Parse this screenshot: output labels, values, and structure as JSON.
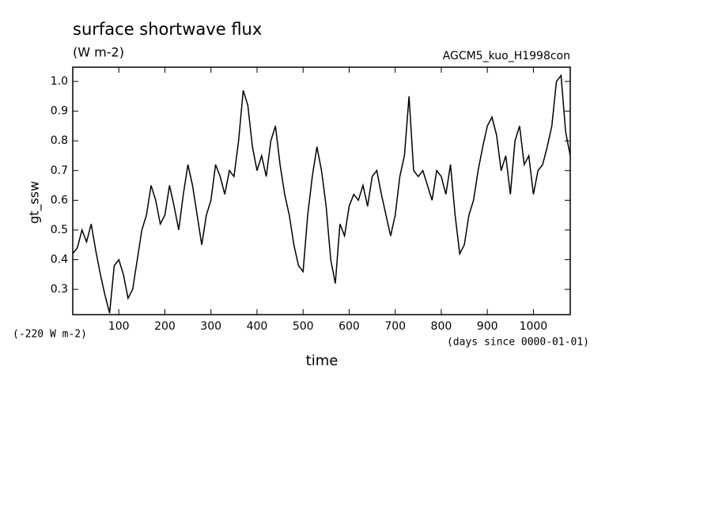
{
  "chart_data": {
    "type": "line",
    "title": "surface shortwave flux",
    "subtitle": "(W m-2)",
    "annotation": "AGCM5_kuo_H1998con",
    "y_offset_label": "(-220 W m-2)",
    "x_units_label": "(days since 0000-01-01)",
    "xlabel": "time",
    "ylabel": "gt_ssw",
    "x": [
      0,
      10,
      20,
      30,
      40,
      50,
      60,
      70,
      80,
      90,
      100,
      110,
      120,
      130,
      140,
      150,
      160,
      170,
      180,
      190,
      200,
      210,
      220,
      230,
      240,
      250,
      260,
      270,
      280,
      290,
      300,
      310,
      320,
      330,
      340,
      350,
      360,
      370,
      380,
      390,
      400,
      410,
      420,
      430,
      440,
      450,
      460,
      470,
      480,
      490,
      500,
      510,
      520,
      530,
      540,
      550,
      560,
      570,
      580,
      590,
      600,
      610,
      620,
      630,
      640,
      650,
      660,
      670,
      680,
      690,
      700,
      710,
      720,
      730,
      740,
      750,
      760,
      770,
      780,
      790,
      800,
      810,
      820,
      830,
      840,
      850,
      860,
      870,
      880,
      890,
      900,
      910,
      920,
      930,
      940,
      950,
      960,
      970,
      980,
      990,
      1000,
      1010,
      1020,
      1030,
      1040,
      1050,
      1060,
      1070,
      1080
    ],
    "series": [
      {
        "name": "gt_ssw",
        "color": "#000000",
        "values": [
          0.42,
          0.44,
          0.5,
          0.46,
          0.52,
          0.43,
          0.35,
          0.28,
          0.22,
          0.38,
          0.4,
          0.35,
          0.27,
          0.3,
          0.4,
          0.5,
          0.55,
          0.65,
          0.6,
          0.52,
          0.55,
          0.65,
          0.58,
          0.5,
          0.62,
          0.72,
          0.65,
          0.55,
          0.45,
          0.55,
          0.6,
          0.72,
          0.68,
          0.62,
          0.7,
          0.68,
          0.8,
          0.97,
          0.92,
          0.78,
          0.7,
          0.75,
          0.68,
          0.8,
          0.85,
          0.72,
          0.62,
          0.55,
          0.45,
          0.38,
          0.36,
          0.55,
          0.68,
          0.78,
          0.7,
          0.58,
          0.4,
          0.32,
          0.52,
          0.48,
          0.58,
          0.62,
          0.6,
          0.65,
          0.58,
          0.68,
          0.7,
          0.62,
          0.55,
          0.48,
          0.55,
          0.68,
          0.75,
          0.95,
          0.7,
          0.68,
          0.7,
          0.65,
          0.6,
          0.7,
          0.68,
          0.62,
          0.72,
          0.55,
          0.42,
          0.45,
          0.55,
          0.6,
          0.7,
          0.78,
          0.85,
          0.88,
          0.82,
          0.7,
          0.75,
          0.62,
          0.8,
          0.85,
          0.72,
          0.75,
          0.62,
          0.7,
          0.72,
          0.78,
          0.85,
          1.0,
          1.02,
          0.83,
          0.75
        ]
      }
    ],
    "xlim": [
      0,
      1080
    ],
    "ylim": [
      0.215,
      1.048
    ],
    "xticks": [
      100,
      200,
      300,
      400,
      500,
      600,
      700,
      800,
      900,
      1000
    ],
    "yticks": [
      0.3,
      0.4,
      0.5,
      0.6,
      0.7,
      0.8,
      0.9,
      {
        "value": 1,
        "label": "1.0"
      }
    ]
  }
}
